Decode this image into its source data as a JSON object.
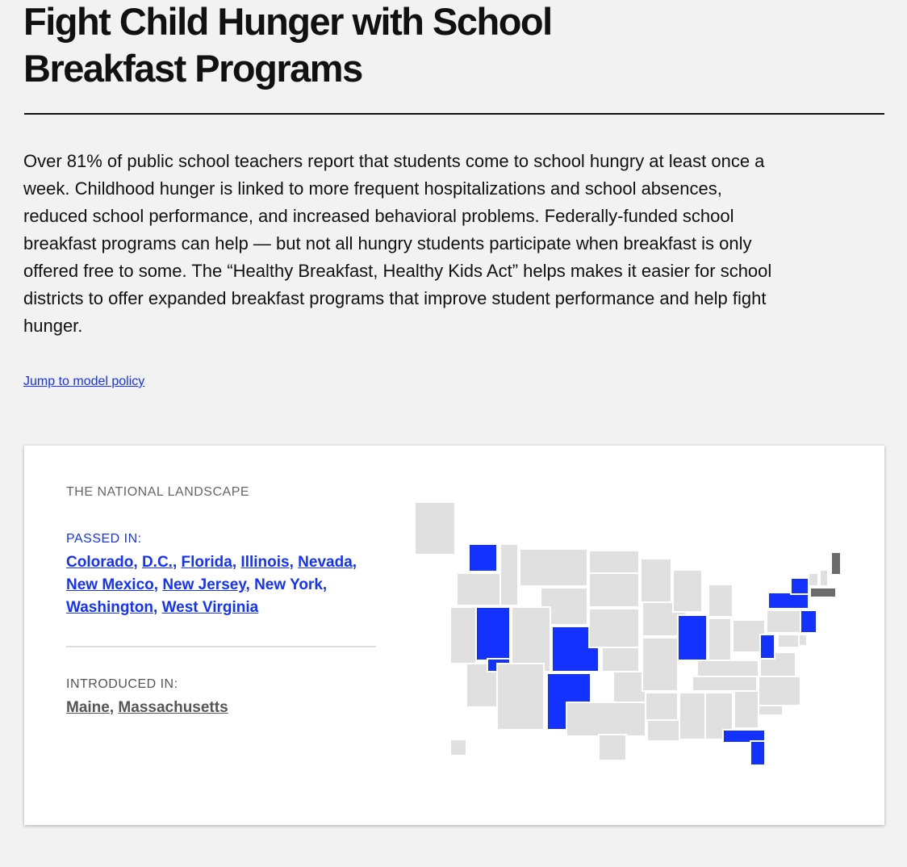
{
  "header": {
    "title": "Fight Child Hunger with School Breakfast Programs"
  },
  "intro": {
    "paragraph": "Over 81% of public school teachers report that students come to school hungry at least once a week. Childhood hunger is linked to more frequent hospitalizations and school absences, reduced school performance, and increased behavioral problems. Federally-funded school breakfast programs can help — but not all hungry students participate when breakfast is only offered free to some. The “Healthy Breakfast, Healthy Kids Act” helps makes it easier for school districts to offer expanded breakfast programs that improve student performance and help fight hunger.",
    "link": "Jump to model policy"
  },
  "landscape": {
    "heading": "THE NATIONAL LANDSCAPE",
    "passed": {
      "label": "PASSED IN:",
      "items": [
        {
          "text": "Colorado",
          "sep": ",",
          "linked": true
        },
        {
          "text": "D.C.",
          "sep": ",",
          "linked": true
        },
        {
          "text": "Florida",
          "sep": ",",
          "linked": true
        },
        {
          "text": "Illinois",
          "sep": ",",
          "linked": true
        },
        {
          "text": "Nevada",
          "sep": ",",
          "linked": true
        },
        {
          "text": "New Mexico",
          "sep": ",",
          "linked": true
        },
        {
          "text": "New Jersey",
          "sep": ",",
          "linked": true
        },
        {
          "text": "New York",
          "sep": ",",
          "linked": false
        },
        {
          "text": "Washington",
          "sep": ",",
          "linked": true
        },
        {
          "text": "West Virginia",
          "linked": true
        }
      ]
    },
    "introduced": {
      "label": "INTRODUCED IN:",
      "items": [
        {
          "text": "Maine",
          "sep": ",",
          "linked": true
        },
        {
          "text": "Massachusetts",
          "linked": true
        }
      ]
    }
  }
}
